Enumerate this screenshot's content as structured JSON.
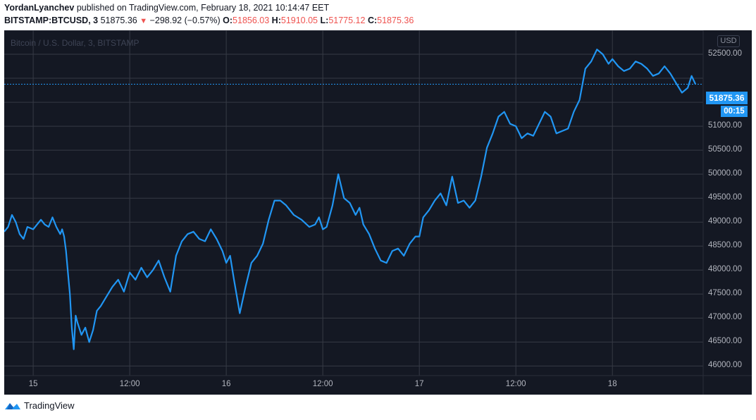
{
  "header": {
    "author": "YordanLyanchev",
    "published_text": "published on TradingView.com, February 18, 2021 10:14:47 EET",
    "symbol": "BITSTAMP:BTCUSD, 3",
    "last": "51875.36",
    "change_arrow": "▼",
    "change": "−298.92 (−0.57%)",
    "o_label": "O:",
    "o_value": "51856.03",
    "h_label": "H:",
    "h_value": "51910.05",
    "l_label": "L:",
    "l_value": "51775.12",
    "c_label": "C:",
    "c_value": "51875.36"
  },
  "chart_data": {
    "type": "line",
    "title": "Bitcoin / U.S. Dollar, 3, BITSTAMP",
    "currency": "USD",
    "x_ticks": [
      "15",
      "12:00",
      "16",
      "12:00",
      "17",
      "12:00",
      "18"
    ],
    "y_ticks": [
      "52500.00",
      "51000.00",
      "50500.00",
      "50000.00",
      "49500.00",
      "49000.00",
      "48500.00",
      "48000.00",
      "47500.00",
      "47000.00",
      "46500.00",
      "46000.00"
    ],
    "ylim": [
      45800,
      53000
    ],
    "xlim": [
      14.85,
      18.47
    ],
    "last_price_label": "51875.36",
    "countdown": "00:15",
    "series": [
      {
        "color": "#2196f3",
        "x": [
          14.85,
          14.87,
          14.89,
          14.91,
          14.93,
          14.95,
          14.97,
          15.0,
          15.02,
          15.04,
          15.06,
          15.08,
          15.1,
          15.12,
          15.14,
          15.15,
          15.16,
          15.17,
          15.18,
          15.19,
          15.2,
          15.21,
          15.22,
          15.23,
          15.25,
          15.27,
          15.29,
          15.31,
          15.33,
          15.35,
          15.38,
          15.41,
          15.44,
          15.47,
          15.5,
          15.53,
          15.56,
          15.59,
          15.62,
          15.65,
          15.68,
          15.71,
          15.74,
          15.77,
          15.8,
          15.83,
          15.86,
          15.89,
          15.92,
          15.95,
          15.98,
          16.0,
          16.02,
          16.04,
          16.07,
          16.1,
          16.13,
          16.16,
          16.19,
          16.22,
          16.25,
          16.28,
          16.31,
          16.35,
          16.39,
          16.43,
          16.46,
          16.48,
          16.5,
          16.52,
          16.55,
          16.58,
          16.61,
          16.64,
          16.67,
          16.69,
          16.71,
          16.74,
          16.77,
          16.8,
          16.83,
          16.86,
          16.89,
          16.92,
          16.95,
          16.98,
          17.0,
          17.02,
          17.05,
          17.08,
          17.11,
          17.14,
          17.17,
          17.2,
          17.23,
          17.26,
          17.29,
          17.32,
          17.35,
          17.38,
          17.41,
          17.44,
          17.47,
          17.5,
          17.53,
          17.56,
          17.59,
          17.62,
          17.65,
          17.68,
          17.71,
          17.74,
          17.77,
          17.8,
          17.83,
          17.86,
          17.89,
          17.92,
          17.95,
          17.98,
          18.0,
          18.03,
          18.06,
          18.09,
          18.12,
          18.15,
          18.18,
          18.21,
          18.24,
          18.27,
          18.3,
          18.33,
          18.36,
          18.39,
          18.41,
          18.43
        ],
        "y": [
          48800,
          48900,
          49150,
          49000,
          48750,
          48650,
          48900,
          48850,
          48950,
          49050,
          48950,
          48900,
          49100,
          48900,
          48750,
          48850,
          48700,
          48400,
          47950,
          47500,
          46800,
          46350,
          47050,
          46900,
          46650,
          46800,
          46500,
          46750,
          47150,
          47250,
          47450,
          47650,
          47800,
          47550,
          47950,
          47800,
          48050,
          47850,
          48000,
          48200,
          47850,
          47550,
          48300,
          48600,
          48750,
          48800,
          48650,
          48600,
          48850,
          48650,
          48400,
          48150,
          48300,
          47800,
          47100,
          47650,
          48150,
          48300,
          48550,
          49050,
          49450,
          49450,
          49350,
          49150,
          49050,
          48900,
          48950,
          49100,
          48850,
          48900,
          49350,
          50000,
          49500,
          49400,
          49150,
          49300,
          48950,
          48750,
          48450,
          48200,
          48150,
          48400,
          48450,
          48300,
          48550,
          48700,
          48700,
          49100,
          49250,
          49450,
          49600,
          49350,
          49950,
          49400,
          49450,
          49300,
          49450,
          49950,
          50550,
          50850,
          51200,
          51300,
          51050,
          51000,
          50750,
          50850,
          50800,
          51050,
          51300,
          51200,
          50850,
          50900,
          50950,
          51300,
          51550,
          52200,
          52350,
          52600,
          52500,
          52300,
          52400,
          52250,
          52150,
          52200,
          52350,
          52300,
          52200,
          52050,
          52100,
          52250,
          52100,
          51900,
          51700,
          51800,
          52050,
          51880
        ]
      }
    ]
  }
}
